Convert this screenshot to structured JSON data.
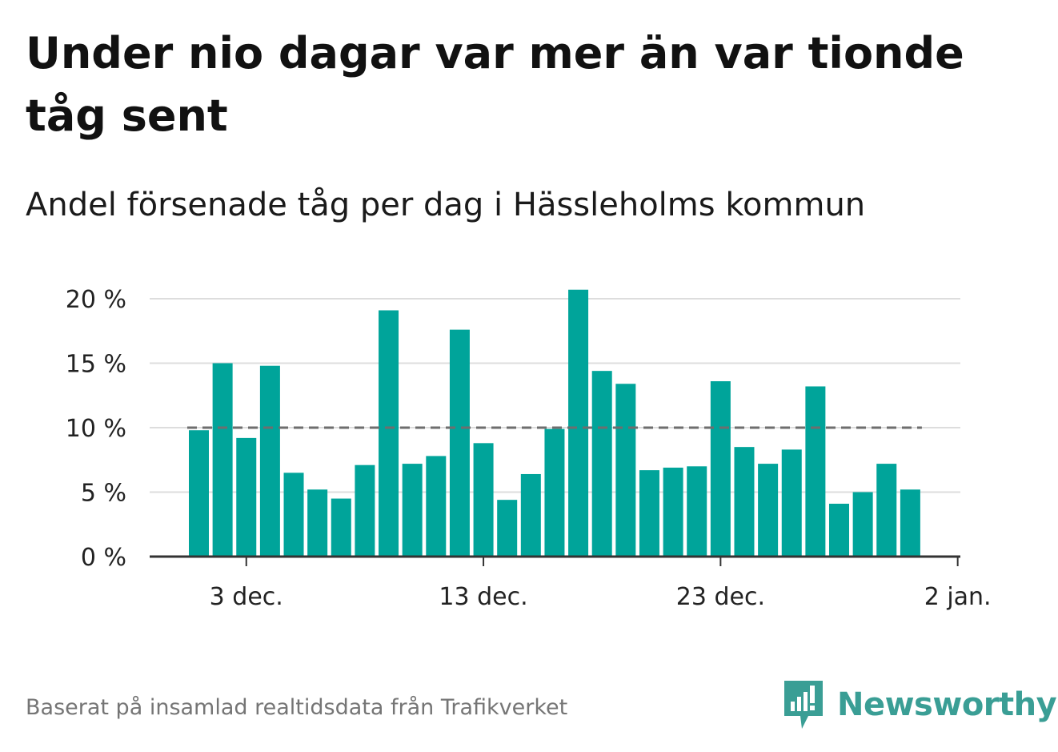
{
  "title": "Under nio dagar var mer än var tionde tåg sent",
  "subtitle": "Andel försenade tåg per dag i Hässleholms kommun",
  "footer": "Baserat på insamlad realtidsdata från Trafikverket",
  "logo": {
    "text": "Newsworthy",
    "icon": "newsworthy-bars-icon",
    "color": "#3a9e95"
  },
  "colors": {
    "bar": "#00a49a",
    "grid": "#dddddd",
    "axis": "#333333",
    "reference_line": "#6e6e6e"
  },
  "chart_data": {
    "type": "bar",
    "title": "",
    "xlabel": "",
    "ylabel": "",
    "x": [
      "2019-12-01",
      "2019-12-02",
      "2019-12-03",
      "2019-12-04",
      "2019-12-05",
      "2019-12-06",
      "2019-12-07",
      "2019-12-08",
      "2019-12-09",
      "2019-12-10",
      "2019-12-11",
      "2019-12-12",
      "2019-12-13",
      "2019-12-14",
      "2019-12-15",
      "2019-12-16",
      "2019-12-17",
      "2019-12-18",
      "2019-12-19",
      "2019-12-20",
      "2019-12-21",
      "2019-12-22",
      "2019-12-23",
      "2019-12-24",
      "2019-12-25",
      "2019-12-26",
      "2019-12-27",
      "2019-12-28",
      "2019-12-29",
      "2019-12-30",
      "2019-12-31"
    ],
    "values": [
      9.8,
      15.0,
      9.2,
      14.8,
      6.5,
      5.2,
      4.5,
      7.1,
      19.1,
      7.2,
      7.8,
      17.6,
      8.8,
      4.4,
      6.4,
      9.9,
      20.7,
      14.4,
      13.4,
      6.7,
      6.9,
      7.0,
      13.6,
      8.5,
      7.2,
      8.3,
      13.2,
      4.1,
      5.0,
      7.2,
      5.2
    ],
    "reference_line": 10,
    "ylim": [
      0,
      20
    ],
    "yticks": [
      0,
      5,
      10,
      15,
      20
    ],
    "ytick_labels": [
      "0 %",
      "5 %",
      "10 %",
      "15 %",
      "20 %"
    ],
    "xticks": [
      "2019-12-03",
      "2019-12-13",
      "2019-12-23",
      "2020-01-02"
    ],
    "xtick_labels": [
      "3 dec.",
      "13 dec.",
      "23 dec.",
      "2 jan."
    ],
    "grid": true,
    "legend": "none"
  }
}
